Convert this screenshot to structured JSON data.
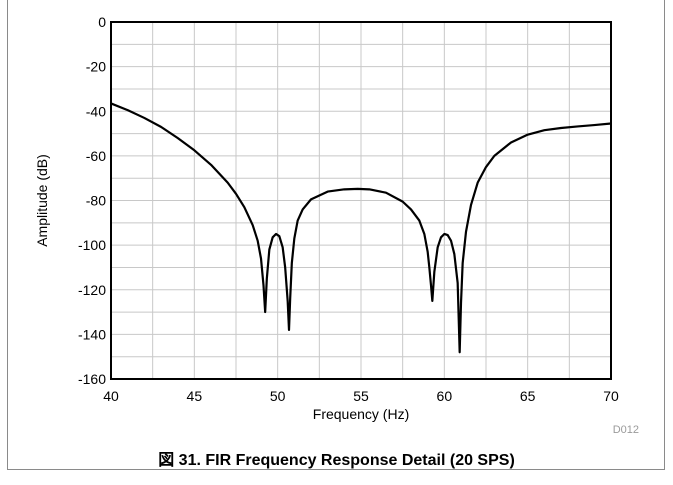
{
  "chart_data": {
    "type": "line",
    "title": "",
    "xlabel": "Frequency (Hz)",
    "ylabel": "Amplitude (dB)",
    "xlim": [
      40,
      70
    ],
    "ylim": [
      -160,
      0
    ],
    "xticks": [
      40,
      45,
      50,
      55,
      60,
      65,
      70
    ],
    "yticks": [
      0,
      -20,
      -40,
      -60,
      -80,
      -100,
      -120,
      -140,
      -160
    ],
    "grid": true,
    "legend": "none",
    "line_color": "#000000",
    "series": [
      {
        "x": [
          40,
          41,
          42,
          43,
          44,
          45,
          46,
          47,
          47.5,
          48,
          48.5,
          48.8,
          49,
          49.15,
          49.25,
          49.35,
          49.5,
          49.7,
          49.9,
          50.1,
          50.3,
          50.45,
          50.6,
          50.68,
          50.75,
          50.85,
          51,
          51.2,
          51.5,
          52,
          53,
          54,
          54.8,
          55.5,
          56.5,
          57.5,
          58,
          58.5,
          58.8,
          59,
          59.1,
          59.2,
          59.28,
          59.4,
          59.6,
          59.8,
          60,
          60.2,
          60.4,
          60.6,
          60.8,
          60.92,
          61,
          61.1,
          61.3,
          61.6,
          62,
          62.5,
          63,
          64,
          65,
          66,
          67,
          68,
          69,
          70
        ],
        "y": [
          -36.5,
          -39.5,
          -43,
          -47,
          -52,
          -57.5,
          -64,
          -72,
          -77,
          -83,
          -91,
          -98,
          -106,
          -118,
          -130,
          -115,
          -102,
          -96.5,
          -95,
          -96,
          -101,
          -110,
          -125,
          -138,
          -124,
          -108,
          -97,
          -89,
          -84,
          -79.5,
          -76,
          -75,
          -74.8,
          -75,
          -76.5,
          -80.5,
          -84,
          -89,
          -95,
          -103,
          -110,
          -118,
          -125,
          -112,
          -101,
          -96.5,
          -95,
          -95.5,
          -98,
          -104,
          -117,
          -148,
          -126,
          -108,
          -94,
          -82,
          -72,
          -65,
          -60,
          -54,
          -50.5,
          -48.5,
          -47.5,
          -46.8,
          -46.2,
          -45.5
        ]
      }
    ]
  },
  "figure": {
    "code": "D012",
    "caption": "図 31. FIR Frequency Response Detail (20 SPS)"
  }
}
